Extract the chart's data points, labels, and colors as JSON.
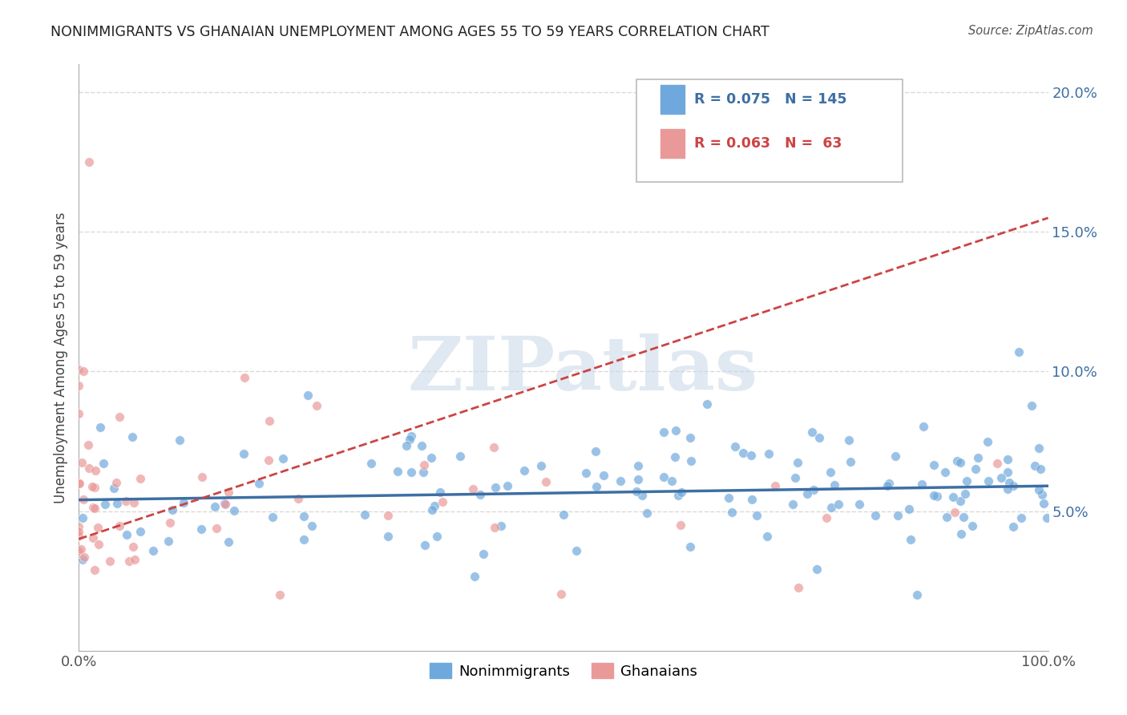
{
  "title": "NONIMMIGRANTS VS GHANAIAN UNEMPLOYMENT AMONG AGES 55 TO 59 YEARS CORRELATION CHART",
  "source": "Source: ZipAtlas.com",
  "ylabel": "Unemployment Among Ages 55 to 59 years",
  "xlim": [
    0.0,
    1.0
  ],
  "ylim": [
    0.0,
    0.21
  ],
  "xticks": [
    0.0,
    0.2,
    0.4,
    0.6,
    0.8,
    1.0
  ],
  "xticklabels": [
    "0.0%",
    "",
    "",
    "",
    "",
    "100.0%"
  ],
  "yticks_right": [
    0.05,
    0.1,
    0.15,
    0.2
  ],
  "yticklabels_right": [
    "5.0%",
    "10.0%",
    "15.0%",
    "20.0%"
  ],
  "nonimmigrant_color": "#6fa8dc",
  "ghanaian_color": "#ea9999",
  "nonimmigrant_line_color": "#3d6fa3",
  "ghanaian_line_color": "#cc4444",
  "nonimmigrant_R": 0.075,
  "nonimmigrant_N": 145,
  "ghanaian_R": 0.063,
  "ghanaian_N": 63,
  "legend_labels": [
    "Nonimmigrants",
    "Ghanaians"
  ],
  "watermark": "ZIPatlas",
  "background_color": "#ffffff",
  "grid_color": "#d9d9d9",
  "ni_trend_start_y": 0.054,
  "ni_trend_end_y": 0.059,
  "gh_trend_start_y": 0.04,
  "gh_trend_end_y": 0.155
}
